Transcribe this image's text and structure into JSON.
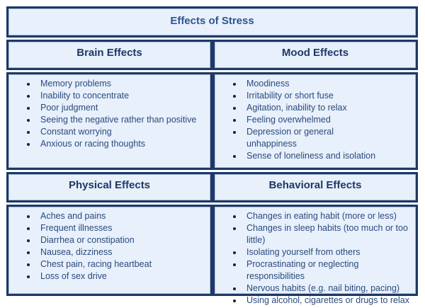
{
  "title": "Effects of Stress",
  "quadrants": [
    {
      "header": "Brain Effects",
      "items": [
        "Memory problems",
        "Inability to concentrate",
        "Poor judgment",
        "Seeing the negative rather than positive",
        "Constant worrying",
        "Anxious or racing thoughts"
      ]
    },
    {
      "header": "Mood Effects",
      "items": [
        "Moodiness",
        "Irritability or short fuse",
        "Agitation, inability to relax",
        "Feeling overwhelmed",
        "Depression or general\nunhappiness",
        "Sense of loneliness and isolation"
      ]
    },
    {
      "header": "Physical Effects",
      "items": [
        "Aches and pains",
        "Frequent illnesses",
        "Diarrhea or constipation",
        "Nausea, dizziness",
        "Chest pain, racing heartbeat",
        "Loss of sex drive"
      ]
    },
    {
      "header": "Behavioral Effects",
      "items": [
        "Changes in eating habit (more or less)",
        "Changes in sleep habits (too much or too\nlittle)",
        "Isolating yourself from others",
        "Procrastinating or neglecting responsibilities",
        "Nervous habits (e.g. nail biting, pacing)",
        "Using alcohol, cigarettes or drugs to relax"
      ]
    }
  ],
  "colors": {
    "cell_border": "#1f3864",
    "cell_fill": "#e7f0fb",
    "title_text": "#2e5492",
    "header_text": "#1f3864",
    "list_text": "#2b4a7d",
    "bullet": "#15223f"
  }
}
